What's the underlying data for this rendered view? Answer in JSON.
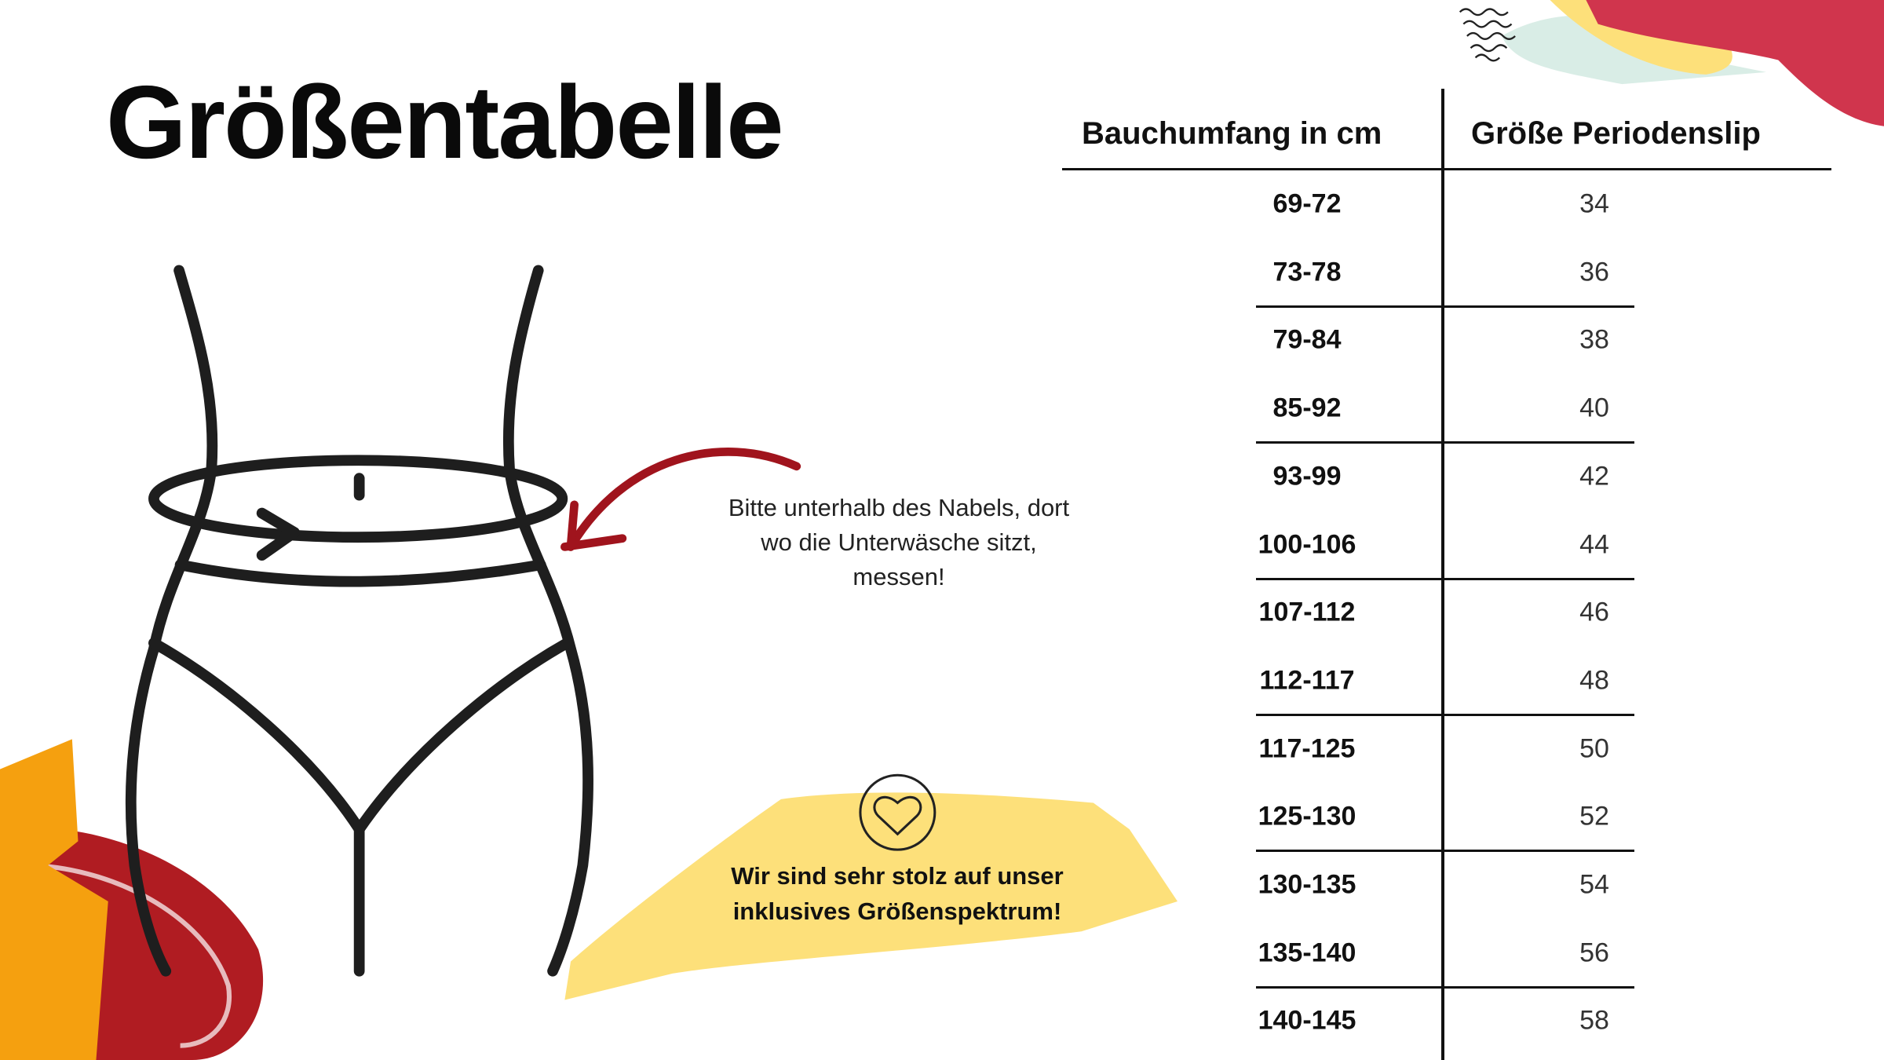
{
  "title": "Größentabelle",
  "measure_hint": [
    "Bitte unterhalb des Nabels, dort",
    "wo die Unterwäsche sitzt,",
    "messen!"
  ],
  "slogan": [
    "Wir sind sehr stolz auf unser",
    "inklusives Größenspektrum!"
  ],
  "slogan_icon": "heart-in-circle-icon",
  "table": {
    "headers": [
      "Bauchumfang in cm",
      "Größe Periodenslip"
    ],
    "rows": [
      {
        "range": "69-72",
        "size": "34"
      },
      {
        "range": "73-78",
        "size": "36"
      },
      {
        "range": "79-84",
        "size": "38"
      },
      {
        "range": "85-92",
        "size": "40"
      },
      {
        "range": "93-99",
        "size": "42"
      },
      {
        "range": "100-106",
        "size": "44"
      },
      {
        "range": "107-112",
        "size": "46"
      },
      {
        "range": "112-117",
        "size": "48"
      },
      {
        "range": "117-125",
        "size": "50"
      },
      {
        "range": "125-130",
        "size": "52"
      },
      {
        "range": "130-135",
        "size": "54"
      },
      {
        "range": "135-140",
        "size": "56"
      },
      {
        "range": "140-145",
        "size": "58"
      }
    ]
  },
  "colors": {
    "red": "#b01c22",
    "crimson": "#d0354d",
    "yellow": "#fde07a",
    "orange": "#f5a00f",
    "ink": "#1e1e1e"
  }
}
